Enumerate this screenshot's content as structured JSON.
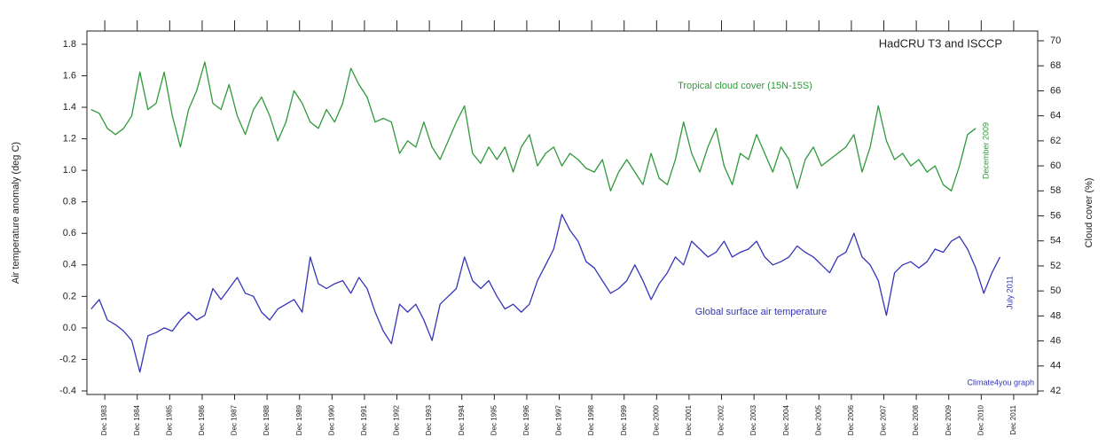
{
  "chart_data": {
    "type": "line",
    "title": "HadCRU T3 and ISCCP",
    "ylabel": "Air temperature anomaly (deg C)",
    "y2label": "Cloud cover (%)",
    "annotations": [
      "Tropical cloud cover (15N-15S)",
      "Global surface air temperature",
      "December 2009",
      "July 2011",
      "Climate4you graph"
    ],
    "x": [
      1983.5,
      1983.75,
      1984,
      1984.25,
      1984.5,
      1984.75,
      1985,
      1985.25,
      1985.5,
      1985.75,
      1986,
      1986.25,
      1986.5,
      1986.75,
      1987,
      1987.25,
      1987.5,
      1987.75,
      1988,
      1988.25,
      1988.5,
      1988.75,
      1989,
      1989.25,
      1989.5,
      1989.75,
      1990,
      1990.25,
      1990.5,
      1990.75,
      1991,
      1991.25,
      1991.5,
      1991.75,
      1992,
      1992.25,
      1992.5,
      1992.75,
      1993,
      1993.25,
      1993.5,
      1993.75,
      1994,
      1994.25,
      1994.5,
      1994.75,
      1995,
      1995.25,
      1995.5,
      1995.75,
      1996,
      1996.25,
      1996.5,
      1996.75,
      1997,
      1997.25,
      1997.5,
      1997.75,
      1998,
      1998.25,
      1998.5,
      1998.75,
      1999,
      1999.25,
      1999.5,
      1999.75,
      2000,
      2000.25,
      2000.5,
      2000.75,
      2001,
      2001.25,
      2001.5,
      2001.75,
      2002,
      2002.25,
      2002.5,
      2002.75,
      2003,
      2003.25,
      2003.5,
      2003.75,
      2004,
      2004.25,
      2004.5,
      2004.75,
      2005,
      2005.25,
      2005.5,
      2005.75,
      2006,
      2006.25,
      2006.5,
      2006.75,
      2007,
      2007.25,
      2007.5,
      2007.75,
      2008,
      2008.25,
      2008.5,
      2008.75,
      2009,
      2009.25,
      2009.5,
      2009.75,
      2010,
      2010.25,
      2010.5,
      2010.75,
      2011,
      2011.25,
      2011.5
    ],
    "series": [
      {
        "name": "Tropical cloud cover (15N-15S)",
        "color": "#2e9a3a",
        "axis": "y2",
        "values": [
          64.5,
          64.2,
          63,
          62.5,
          63,
          64,
          67.5,
          64.5,
          65,
          67.5,
          64,
          61.5,
          64.5,
          66,
          68.3,
          65,
          64.5,
          66.5,
          64,
          62.5,
          64.5,
          65.5,
          64,
          62,
          63.5,
          66,
          65,
          63.5,
          63,
          64.5,
          63.5,
          65,
          67.8,
          66.5,
          65.5,
          63.5,
          63.8,
          63.5,
          61,
          62,
          61.5,
          63.5,
          61.5,
          60.5,
          62,
          63.5,
          64.8,
          61,
          60.2,
          61.5,
          60.5,
          61.5,
          59.5,
          61.5,
          62.5,
          60,
          61,
          61.5,
          60,
          61,
          60.5,
          59.8,
          59.5,
          60.5,
          58,
          59.5,
          60.5,
          59.5,
          58.5,
          61,
          59,
          58.5,
          60.5,
          63.5,
          61,
          59.5,
          61.5,
          63,
          60,
          58.5,
          61,
          60.5,
          62.5,
          61,
          59.5,
          61.5,
          60.5,
          58.2,
          60.5,
          61.5,
          60,
          60.5,
          61,
          61.5,
          62.5,
          59.5,
          61.5,
          64.8,
          62,
          60.5,
          61,
          60,
          60.5,
          59.5,
          60,
          58.5,
          58,
          60,
          62.5,
          63,
          null,
          null,
          null
        ]
      },
      {
        "name": "Global surface air temperature",
        "color": "#3535b8",
        "values": [
          0.12,
          0.18,
          0.05,
          0.02,
          -0.02,
          -0.08,
          -0.28,
          -0.05,
          -0.03,
          0.0,
          -0.02,
          0.05,
          0.1,
          0.05,
          0.08,
          0.25,
          0.18,
          0.25,
          0.32,
          0.22,
          0.2,
          0.1,
          0.05,
          0.12,
          0.15,
          0.18,
          0.1,
          0.45,
          0.28,
          0.25,
          0.28,
          0.3,
          0.22,
          0.32,
          0.25,
          0.1,
          -0.02,
          -0.1,
          0.15,
          0.1,
          0.15,
          0.05,
          -0.08,
          0.15,
          0.2,
          0.25,
          0.45,
          0.3,
          0.25,
          0.3,
          0.2,
          0.12,
          0.15,
          0.1,
          0.15,
          0.3,
          0.4,
          0.5,
          0.72,
          0.62,
          0.55,
          0.42,
          0.38,
          0.3,
          0.22,
          0.25,
          0.3,
          0.4,
          0.3,
          0.18,
          0.28,
          0.35,
          0.45,
          0.4,
          0.55,
          0.5,
          0.45,
          0.48,
          0.55,
          0.45,
          0.48,
          0.5,
          0.55,
          0.45,
          0.4,
          0.42,
          0.45,
          0.52,
          0.48,
          0.45,
          0.4,
          0.35,
          0.45,
          0.48,
          0.6,
          0.45,
          0.4,
          0.3,
          0.08,
          0.35,
          0.4,
          0.42,
          0.38,
          0.42,
          0.5,
          0.48,
          0.55,
          0.58,
          0.5,
          0.38,
          0.22,
          0.35,
          0.45
        ]
      }
    ],
    "xlim": [
      1983.37,
      2012.66
    ],
    "xticks": [
      {
        "value": 1983.92,
        "label": "Dec 1983"
      },
      {
        "value": 1984.92,
        "label": "Dec 1984"
      },
      {
        "value": 1985.92,
        "label": "Dec 1985"
      },
      {
        "value": 1986.92,
        "label": "Dec 1986"
      },
      {
        "value": 1987.92,
        "label": "Dec 1987"
      },
      {
        "value": 1988.92,
        "label": "Dec 1988"
      },
      {
        "value": 1989.92,
        "label": "Dec 1989"
      },
      {
        "value": 1990.92,
        "label": "Dec 1990"
      },
      {
        "value": 1991.92,
        "label": "Dec 1991"
      },
      {
        "value": 1992.92,
        "label": "Dec 1992"
      },
      {
        "value": 1993.92,
        "label": "Dec 1993"
      },
      {
        "value": 1994.92,
        "label": "Dec 1994"
      },
      {
        "value": 1995.92,
        "label": "Dec 1995"
      },
      {
        "value": 1996.92,
        "label": "Dec 1996"
      },
      {
        "value": 1997.92,
        "label": "Dec 1997"
      },
      {
        "value": 1998.92,
        "label": "Dec 1998"
      },
      {
        "value": 1999.92,
        "label": "Dec 1999"
      },
      {
        "value": 2000.92,
        "label": "Dec 2000"
      },
      {
        "value": 2001.92,
        "label": "Dec 2001"
      },
      {
        "value": 2002.92,
        "label": "Dec 2002"
      },
      {
        "value": 2003.92,
        "label": "Dec 2003"
      },
      {
        "value": 2004.92,
        "label": "Dec 2004"
      },
      {
        "value": 2005.92,
        "label": "Dec 2005"
      },
      {
        "value": 2006.92,
        "label": "Dec 2006"
      },
      {
        "value": 2007.92,
        "label": "Dec 2007"
      },
      {
        "value": 2008.92,
        "label": "Dec 2008"
      },
      {
        "value": 2009.92,
        "label": "Dec 2009"
      },
      {
        "value": 2010.92,
        "label": "Dec 2010"
      },
      {
        "value": 2011.92,
        "label": "Dec 2011"
      }
    ],
    "ylim": [
      -0.4225,
      1.884
    ],
    "yticks": [
      -0.4,
      -0.2,
      {
        "value": 0,
        "label": "0.0"
      },
      0.2,
      0.4,
      0.6,
      0.8,
      {
        "value": 1,
        "label": "1.0"
      },
      1.2,
      1.4,
      1.6,
      1.8
    ],
    "y2lim": [
      41.72,
      70.78
    ],
    "y2ticks": [
      42,
      44,
      46,
      48,
      50,
      52,
      54,
      56,
      58,
      60,
      62,
      64,
      66,
      68,
      70
    ],
    "grid": false
  }
}
